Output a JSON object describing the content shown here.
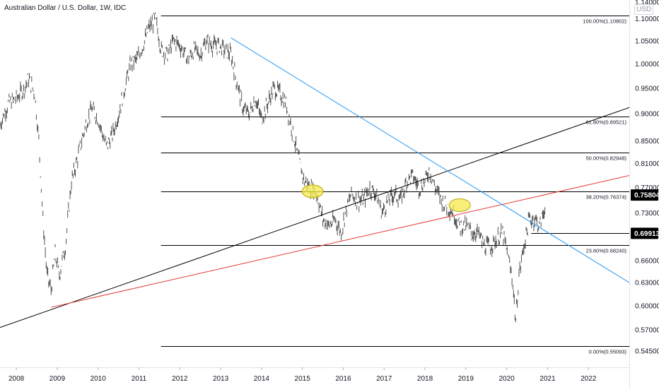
{
  "chart_data": {
    "type": "line",
    "title": "Australian Dollar / U.S. Dollar, 1W, IDC",
    "currency": "USD",
    "x_range": [
      2007.6,
      2023.0
    ],
    "y_range": [
      0.5268,
      1.1447
    ],
    "y_scale": "log",
    "x_ticks": [
      "2008",
      "2009",
      "2010",
      "2011",
      "2012",
      "2013",
      "2014",
      "2015",
      "2016",
      "2017",
      "2018",
      "2019",
      "2020",
      "2021",
      "2022"
    ],
    "y_ticks": [
      "1.14000",
      "1.10000",
      "1.05000",
      "1.00000",
      "0.95000",
      "0.90000",
      "0.85000",
      "0.81000",
      "0.77000",
      "0.73000",
      "0.70000",
      "0.66000",
      "0.63000",
      "0.60000",
      "0.57000",
      "0.54500"
    ],
    "price_labels": [
      {
        "text": "0.75804",
        "value": 0.75804,
        "style": "filled"
      },
      {
        "text": "0.69913",
        "value": 0.69913,
        "style": "filled"
      }
    ],
    "horizontal_levels": [
      {
        "value": 1.10802,
        "label": "100.00%(1.10802)",
        "x_start": 2011.54
      },
      {
        "value": 0.89521,
        "label": "61.80%(0.89521)",
        "x_start": 2011.54
      },
      {
        "value": 0.82948,
        "label": "50.00%(0.82948)",
        "x_start": 2011.54
      },
      {
        "value": 0.76374,
        "label": "38.20%(0.76374)",
        "x_start": 2011.54
      },
      {
        "value": 0.6824,
        "label": "23.60%(0.68240)",
        "x_start": 2011.54
      },
      {
        "value": 0.55093,
        "label": "0.00%(0.55093)",
        "x_start": 2011.54
      },
      {
        "value": 0.69913,
        "label": "",
        "x_start": 2020.6
      }
    ],
    "trend_lines": [
      {
        "color": "#000000",
        "points": [
          [
            2007.6,
            0.573
          ],
          [
            2023.0,
            0.912
          ]
        ]
      },
      {
        "color": "#e53935",
        "points": [
          [
            2008.85,
            0.598
          ],
          [
            2023.0,
            0.79
          ]
        ]
      },
      {
        "color": "#2196f3",
        "points": [
          [
            2013.25,
            1.057
          ],
          [
            2023.0,
            0.63
          ]
        ]
      }
    ],
    "highlights": [
      {
        "x": 2015.25,
        "y": 0.764
      },
      {
        "x": 2018.85,
        "y": 0.742
      }
    ],
    "series": [
      {
        "x": [
          2007.6,
          2007.8,
          2008.0,
          2008.2,
          2008.3,
          2008.45,
          2008.55,
          2008.65,
          2008.75,
          2008.85,
          2008.95,
          2009.05,
          2009.2,
          2009.35,
          2009.5,
          2009.7,
          2009.85,
          2010.0,
          2010.2,
          2010.35,
          2010.5,
          2010.65,
          2010.8,
          2010.95,
          2011.1,
          2011.25,
          2011.4,
          2011.55,
          2011.7,
          2011.85,
          2012.0,
          2012.2,
          2012.35,
          2012.5,
          2012.65,
          2012.8,
          2012.95,
          2013.1,
          2013.25,
          2013.4,
          2013.55,
          2013.7,
          2013.85,
          2014.0,
          2014.15,
          2014.3,
          2014.45,
          2014.6,
          2014.75,
          2014.9,
          2015.05,
          2015.2,
          2015.35,
          2015.5,
          2015.65,
          2015.8,
          2015.95,
          2016.05,
          2016.2,
          2016.35,
          2016.5,
          2016.65,
          2016.8,
          2016.95,
          2017.1,
          2017.25,
          2017.4,
          2017.55,
          2017.7,
          2017.85,
          2018.0,
          2018.1,
          2018.25,
          2018.4,
          2018.55,
          2018.7,
          2018.85,
          2019.0,
          2019.15,
          2019.3,
          2019.45,
          2019.6,
          2019.75,
          2019.9,
          2020.05,
          2020.15,
          2020.22,
          2020.3,
          2020.42,
          2020.55,
          2020.7,
          2020.8,
          2020.9,
          2020.95
        ],
        "y": [
          0.88,
          0.92,
          0.93,
          0.95,
          0.97,
          0.94,
          0.85,
          0.72,
          0.64,
          0.62,
          0.67,
          0.64,
          0.68,
          0.78,
          0.82,
          0.88,
          0.91,
          0.89,
          0.84,
          0.86,
          0.9,
          0.95,
          1.0,
          1.01,
          1.04,
          1.08,
          1.1,
          1.03,
          1.02,
          1.05,
          1.04,
          1.01,
          1.03,
          1.02,
          1.05,
          1.04,
          1.04,
          1.03,
          1.02,
          0.96,
          0.91,
          0.9,
          0.93,
          0.89,
          0.92,
          0.95,
          0.94,
          0.92,
          0.87,
          0.82,
          0.78,
          0.77,
          0.76,
          0.72,
          0.71,
          0.72,
          0.7,
          0.73,
          0.76,
          0.75,
          0.75,
          0.77,
          0.76,
          0.73,
          0.75,
          0.76,
          0.75,
          0.78,
          0.79,
          0.77,
          0.78,
          0.8,
          0.77,
          0.75,
          0.74,
          0.73,
          0.71,
          0.71,
          0.7,
          0.7,
          0.68,
          0.68,
          0.69,
          0.7,
          0.66,
          0.63,
          0.58,
          0.64,
          0.68,
          0.72,
          0.72,
          0.71,
          0.73,
          0.745
        ]
      }
    ]
  }
}
